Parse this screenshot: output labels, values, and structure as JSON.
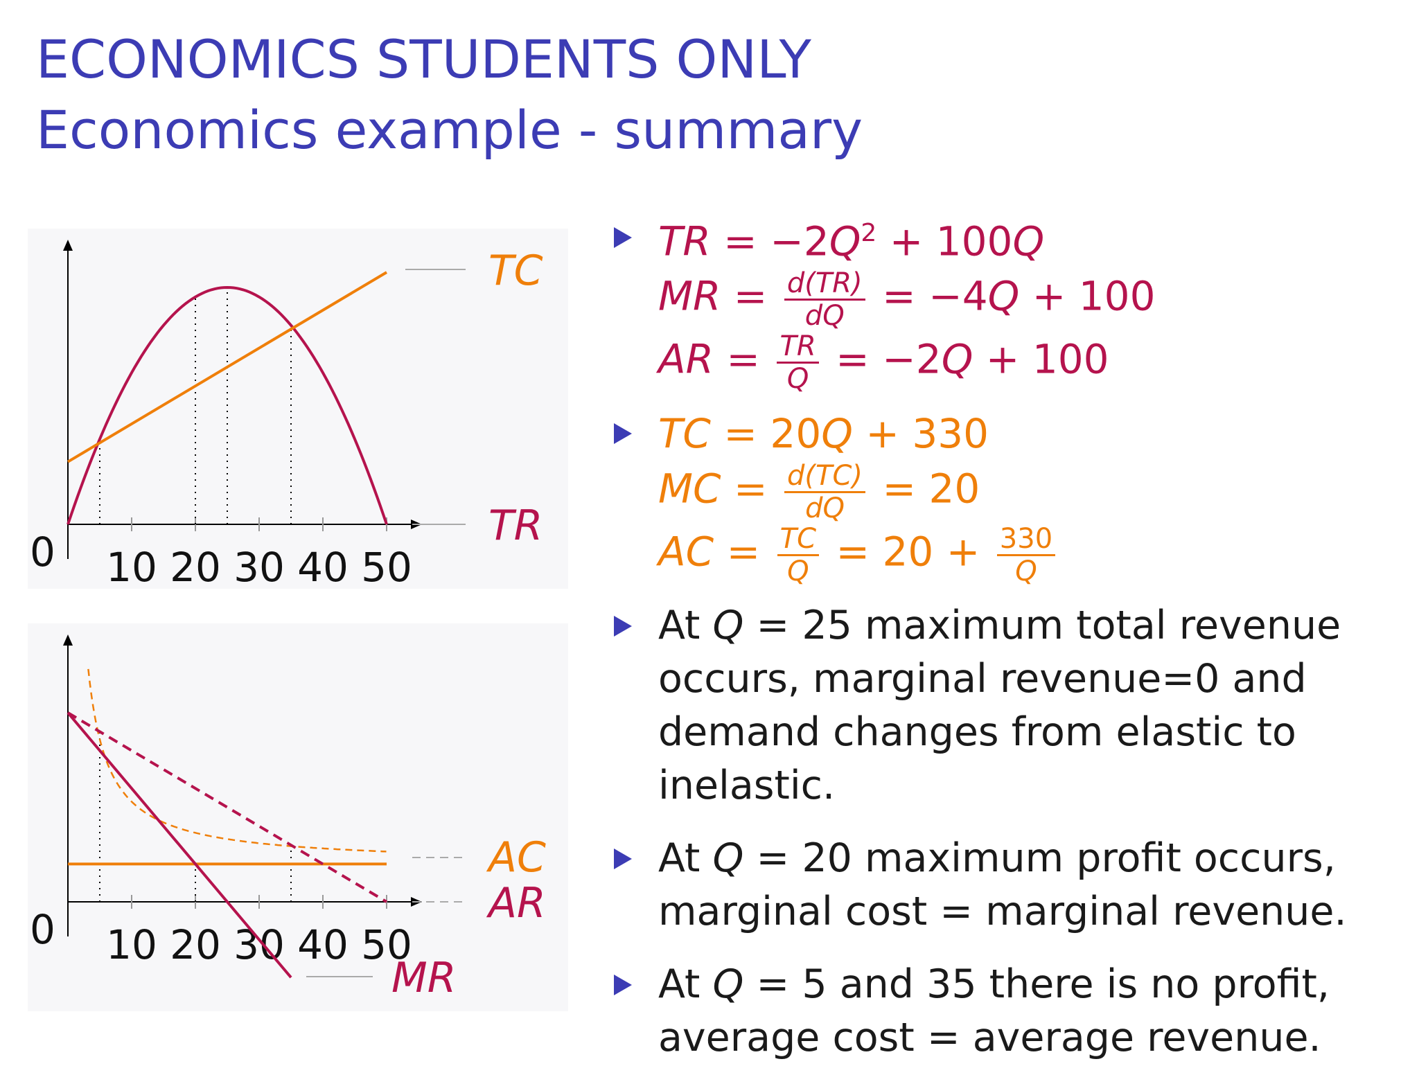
{
  "slide": {
    "title_line1": "ECONOMICS STUDENTS ONLY",
    "title_line2": "Economics example - summary"
  },
  "colors": {
    "title": "#3c3cb4",
    "revenue": "#b5134d",
    "cost": "#ef7f0a",
    "bullet": "#3c3cb4"
  },
  "chart_data": [
    {
      "type": "line",
      "origin_label": "0",
      "x_ticks": [
        "10",
        "20",
        "30",
        "40",
        "50"
      ],
      "xlim": [
        0,
        50
      ],
      "series": [
        {
          "name": "TC",
          "formula": "20Q+330",
          "x": [
            0,
            50
          ],
          "y": [
            330,
            1330
          ]
        },
        {
          "name": "TR",
          "formula": "-2Q^2+100Q",
          "x": [
            0,
            5,
            10,
            15,
            20,
            25,
            30,
            35,
            40,
            45,
            50
          ],
          "y": [
            0,
            450,
            800,
            1050,
            1200,
            1250,
            1200,
            1050,
            800,
            450,
            0
          ]
        }
      ],
      "reference_x": [
        5,
        20,
        25,
        35
      ]
    },
    {
      "type": "line",
      "origin_label": "0",
      "x_ticks": [
        "10",
        "20",
        "30",
        "40",
        "50"
      ],
      "xlim": [
        0,
        50
      ],
      "series": [
        {
          "name": "AC",
          "formula": "20+330/Q",
          "style": "dashed"
        },
        {
          "name": "MC",
          "formula": "20",
          "style": "solid"
        },
        {
          "name": "AR",
          "formula": "-2Q+100",
          "style": "dashed"
        },
        {
          "name": "MR",
          "formula": "-4Q+100",
          "style": "solid"
        }
      ],
      "reference_x": [
        5,
        20,
        35
      ]
    }
  ],
  "equations": {
    "revenue": {
      "tr_lhs": "TR",
      "tr_rhs_a": "−2",
      "tr_rhs_q": "Q",
      "tr_exp": "2",
      "tr_rhs_b": "+ 100",
      "tr_rhs_c": "Q",
      "mr_lhs": "MR",
      "mr_frac_num": "d(TR)",
      "mr_frac_den": "dQ",
      "mr_rhs_a": "= −4",
      "mr_rhs_q": "Q",
      "mr_rhs_b": "+ 100",
      "ar_lhs": "AR",
      "ar_frac_num": "TR",
      "ar_frac_den": "Q",
      "ar_rhs_a": "= −2",
      "ar_rhs_q": "Q",
      "ar_rhs_b": "+ 100"
    },
    "cost": {
      "tc_lhs": "TC",
      "tc_rhs_a": "20",
      "tc_rhs_q": "Q",
      "tc_rhs_b": "+ 330",
      "mc_lhs": "MC",
      "mc_frac_num": "d(TC)",
      "mc_frac_den": "dQ",
      "mc_rhs": "= 20",
      "ac_lhs": "AC",
      "ac_frac_num": "TC",
      "ac_frac_den": "Q",
      "ac_rhs_a": "= 20 +",
      "ac_frac2_num": "330",
      "ac_frac2_den": "Q"
    }
  },
  "statements": [
    {
      "prefix": "At",
      "var": "Q",
      "rest_line1": "= 25 maximum total revenue",
      "rest_lines": [
        "occurs, marginal revenue=0 and",
        "demand changes from elastic to",
        "inelastic."
      ]
    },
    {
      "prefix": "At",
      "var": "Q",
      "rest_line1": "= 20 maximum profit occurs,",
      "rest_lines": [
        "marginal cost = marginal revenue."
      ]
    },
    {
      "prefix": "At",
      "var": "Q",
      "rest_line1": "= 5 and 35 there is no profit,",
      "rest_lines": [
        "average cost = average revenue."
      ]
    }
  ]
}
